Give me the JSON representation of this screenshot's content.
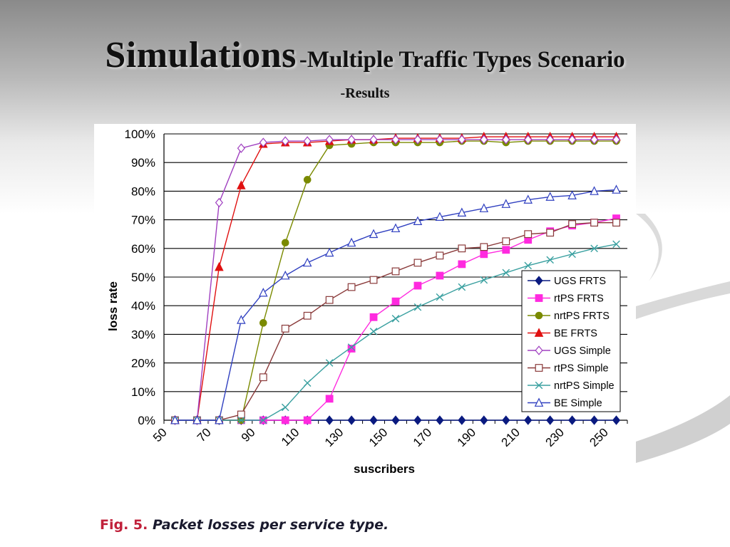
{
  "slide": {
    "title_main": "Simulations",
    "title_sub": "-Multiple Traffic Types Scenario",
    "subtitle": "-Results",
    "caption_fig": "Fig. 5.",
    "caption_text": "Packet losses per service type."
  },
  "chart_data": {
    "type": "line",
    "title": "",
    "xlabel": "suscribers",
    "ylabel": "loss rate",
    "x": [
      55,
      65,
      75,
      85,
      95,
      105,
      115,
      125,
      135,
      145,
      155,
      165,
      175,
      185,
      195,
      205,
      215,
      225,
      235,
      245,
      255
    ],
    "x_ticks": [
      50,
      70,
      90,
      110,
      130,
      150,
      170,
      190,
      210,
      230,
      250
    ],
    "x_tick_labels": [
      "50",
      "70",
      "90",
      "110",
      "130",
      "150",
      "170",
      "190",
      "210",
      "230",
      "250"
    ],
    "xlim": [
      50,
      260
    ],
    "ylim": [
      0,
      100
    ],
    "y_ticks": [
      0,
      10,
      20,
      30,
      40,
      50,
      60,
      70,
      80,
      90,
      100
    ],
    "y_tick_labels": [
      "0%",
      "10%",
      "20%",
      "30%",
      "40%",
      "50%",
      "60%",
      "70%",
      "80%",
      "90%",
      "100%"
    ],
    "grid": "horizontal",
    "legend_position": "right",
    "series": [
      {
        "name": "UGS FRTS",
        "color": "#0a1a80",
        "marker": "diamond",
        "values": [
          0,
          0,
          0,
          0,
          0,
          0,
          0,
          0,
          0,
          0,
          0,
          0,
          0,
          0,
          0,
          0,
          0,
          0,
          0,
          0,
          0
        ]
      },
      {
        "name": "rtPS FRTS",
        "color": "#ff2adf",
        "marker": "square",
        "values": [
          0,
          0,
          0,
          0,
          0,
          0,
          0,
          7.5,
          25,
          36,
          41.5,
          47,
          50.5,
          54.5,
          58,
          59.5,
          63,
          66,
          68,
          69,
          70.5
        ]
      },
      {
        "name": "nrtPS FRTS",
        "color": "#7a8a00",
        "marker": "circle",
        "values": [
          0,
          0,
          0,
          0,
          34,
          62,
          84,
          96,
          96.5,
          97,
          97,
          97,
          97,
          97.5,
          97.5,
          97,
          97.5,
          97.5,
          97.5,
          97.5,
          97.5
        ]
      },
      {
        "name": "BE FRTS",
        "color": "#e01010",
        "marker": "triangle",
        "values": [
          0,
          0,
          53.5,
          82,
          96.5,
          97,
          97,
          97.5,
          98,
          98,
          98.5,
          98.5,
          98.5,
          98.5,
          99,
          99,
          99,
          99,
          99,
          99,
          99
        ]
      },
      {
        "name": "UGS Simple",
        "color": "#a040c0",
        "marker": "diamond-open",
        "values": [
          0,
          0,
          76,
          95,
          97,
          97.5,
          97.5,
          98,
          98,
          98,
          98,
          98,
          98,
          98,
          98,
          98,
          98,
          98,
          98,
          98,
          98
        ]
      },
      {
        "name": "rtPS Simple",
        "color": "#8a3a3a",
        "marker": "square-open",
        "values": [
          0,
          0,
          0,
          2,
          15,
          32,
          36.5,
          42,
          46.5,
          49,
          52,
          55,
          57.5,
          60,
          60.5,
          62.5,
          65,
          65.5,
          68.5,
          69,
          69
        ]
      },
      {
        "name": "nrtPS Simple",
        "color": "#3aa0a0",
        "marker": "x",
        "values": [
          0,
          0,
          0,
          0,
          0,
          4.5,
          13,
          20,
          25.5,
          31,
          35.5,
          39.5,
          43,
          46.5,
          49,
          51.5,
          54,
          56,
          58,
          60,
          61.5
        ]
      },
      {
        "name": "BE Simple",
        "color": "#3040c0",
        "marker": "triangle-open",
        "values": [
          0,
          0,
          0,
          35,
          44.5,
          50.5,
          55,
          58.5,
          62,
          65,
          67,
          69.5,
          71,
          72.5,
          74,
          75.5,
          77,
          78,
          78.5,
          80,
          80.5
        ]
      }
    ]
  }
}
